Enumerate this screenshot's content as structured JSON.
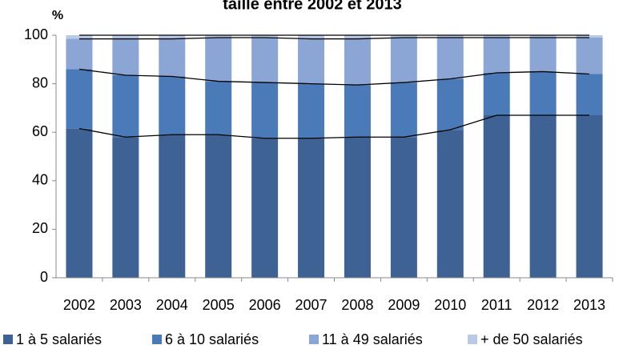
{
  "chart_data": {
    "type": "stacked_bar",
    "title": "taille entre 2002 et 2013",
    "y_label": "%",
    "categories": [
      "2002",
      "2003",
      "2004",
      "2005",
      "2006",
      "2007",
      "2008",
      "2009",
      "2010",
      "2011",
      "2012",
      "2013"
    ],
    "series": [
      {
        "name": "1 à 5 salariés",
        "color": "#3d6293",
        "values": [
          61.5,
          58,
          59,
          59,
          57.5,
          57.5,
          58,
          58,
          61,
          67,
          67,
          67
        ]
      },
      {
        "name": "6 à 10 salariés",
        "color": "#4a7ab8",
        "values": [
          24.5,
          25.5,
          24,
          22,
          23,
          22.5,
          21.5,
          22.5,
          21,
          17.5,
          18,
          17
        ]
      },
      {
        "name": "11 à 49 salariés",
        "color": "#8ba6d4",
        "values": [
          12.5,
          15,
          15.5,
          18,
          18.5,
          18.5,
          19,
          18.5,
          17,
          14.5,
          14,
          15
        ]
      },
      {
        "name": "+ de 50 salariés",
        "color": "#b9c9e6",
        "values": [
          1.5,
          1.5,
          1.5,
          1,
          1,
          1.5,
          1.5,
          1,
          1,
          1,
          1,
          1
        ]
      }
    ],
    "ylim": [
      0,
      100
    ],
    "yticks": [
      0,
      20,
      40,
      60,
      80,
      100
    ]
  }
}
